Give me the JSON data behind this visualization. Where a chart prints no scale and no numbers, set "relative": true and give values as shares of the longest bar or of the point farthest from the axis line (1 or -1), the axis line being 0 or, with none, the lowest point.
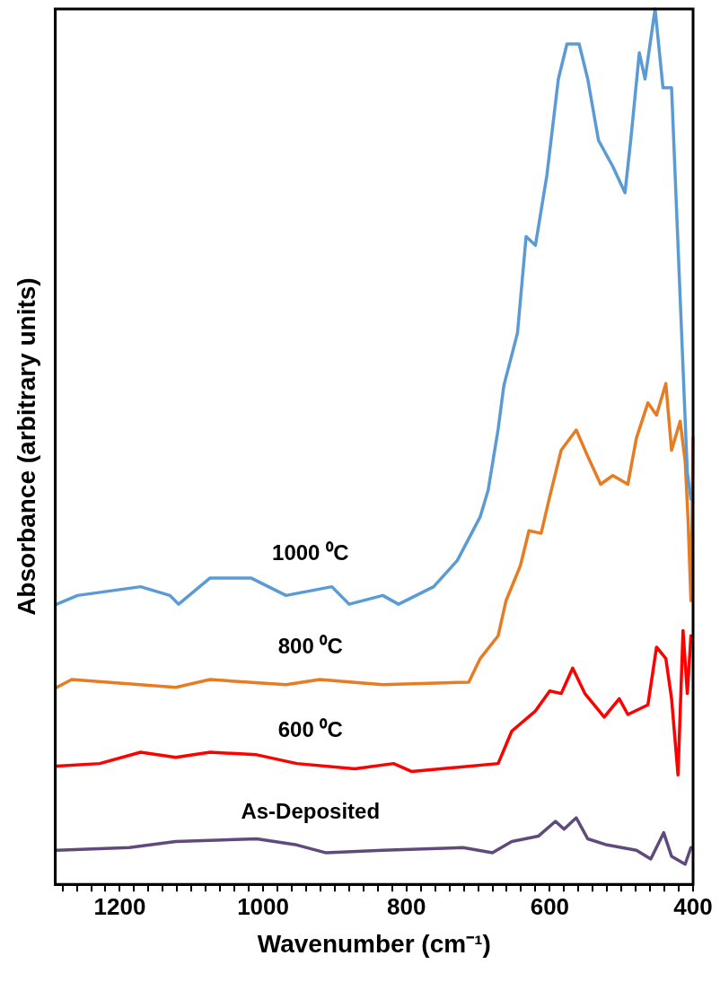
{
  "chart_data": {
    "type": "line",
    "relative": true,
    "xlabel": "Wavenumber (cm⁻¹)",
    "ylabel": "Absorbance (arbitrary units)",
    "xlim": [
      1290,
      400
    ],
    "xticks": [
      {
        "value": 1280,
        "label": null
      },
      {
        "value": 1260,
        "label": null
      },
      {
        "value": 1240,
        "label": null
      },
      {
        "value": 1220,
        "label": null
      },
      1200,
      {
        "value": 1180,
        "label": null
      },
      {
        "value": 1160,
        "label": null
      },
      {
        "value": 1140,
        "label": null
      },
      {
        "value": 1120,
        "label": null
      },
      {
        "value": 1100,
        "label": null
      },
      {
        "value": 1080,
        "label": null
      },
      {
        "value": 1060,
        "label": null
      },
      {
        "value": 1040,
        "label": null
      },
      {
        "value": 1020,
        "label": null
      },
      1000,
      {
        "value": 980,
        "label": null
      },
      {
        "value": 960,
        "label": null
      },
      {
        "value": 940,
        "label": null
      },
      {
        "value": 920,
        "label": null
      },
      {
        "value": 900,
        "label": null
      },
      {
        "value": 880,
        "label": null
      },
      {
        "value": 860,
        "label": null
      },
      {
        "value": 840,
        "label": null
      },
      {
        "value": 820,
        "label": null
      },
      800,
      {
        "value": 780,
        "label": null
      },
      {
        "value": 760,
        "label": null
      },
      {
        "value": 740,
        "label": null
      },
      {
        "value": 720,
        "label": null
      },
      {
        "value": 700,
        "label": null
      },
      {
        "value": 680,
        "label": null
      },
      {
        "value": 660,
        "label": null
      },
      {
        "value": 640,
        "label": null
      },
      {
        "value": 620,
        "label": null
      },
      600,
      {
        "value": 580,
        "label": null
      },
      {
        "value": 560,
        "label": null
      },
      {
        "value": 540,
        "label": null
      },
      {
        "value": 520,
        "label": null
      },
      {
        "value": 500,
        "label": null
      },
      {
        "value": 480,
        "label": null
      },
      {
        "value": 460,
        "label": null
      },
      {
        "value": 440,
        "label": null
      },
      {
        "value": 420,
        "label": null
      },
      400
    ],
    "grid": false,
    "legend": false,
    "marker": "none",
    "line_style": "solid",
    "series": [
      {
        "name": "1000 ⁰C",
        "color": "#5b9bd5",
        "x": [
          1288,
          1259,
          1171,
          1130,
          1118,
          1074,
          1017,
          968,
          904,
          880,
          833,
          811,
          762,
          729,
          697,
          686,
          672,
          664,
          645,
          633,
          620,
          604,
          588,
          576,
          559,
          547,
          532,
          512,
          495,
          487,
          475,
          467,
          453,
          442,
          430,
          422,
          414,
          408,
          403
        ],
        "values": [
          0.32,
          0.33,
          0.34,
          0.33,
          0.32,
          0.35,
          0.35,
          0.33,
          0.34,
          0.32,
          0.33,
          0.32,
          0.34,
          0.37,
          0.42,
          0.45,
          0.52,
          0.57,
          0.63,
          0.74,
          0.73,
          0.81,
          0.92,
          0.96,
          0.96,
          0.92,
          0.85,
          0.82,
          0.79,
          0.85,
          0.95,
          0.92,
          1.0,
          0.91,
          0.91,
          0.75,
          0.59,
          0.47,
          0.44
        ]
      },
      {
        "name": "800 ⁰C",
        "color": "#e67c24",
        "x": [
          1288,
          1267,
          1122,
          1074,
          968,
          921,
          833,
          713,
          697,
          672,
          661,
          641,
          629,
          612,
          600,
          584,
          563,
          547,
          529,
          512,
          491,
          479,
          463,
          451,
          438,
          430,
          418,
          411,
          407,
          403,
          400
        ],
        "values": [
          0.225,
          0.234,
          0.225,
          0.234,
          0.228,
          0.234,
          0.228,
          0.231,
          0.258,
          0.284,
          0.324,
          0.364,
          0.404,
          0.401,
          0.443,
          0.496,
          0.519,
          0.489,
          0.457,
          0.467,
          0.457,
          0.51,
          0.55,
          0.536,
          0.572,
          0.496,
          0.529,
          0.483,
          0.417,
          0.324,
          0.51
        ]
      },
      {
        "name": "600 ⁰C",
        "color": "#ff0000",
        "x": [
          1288,
          1228,
          1171,
          1122,
          1074,
          1009,
          953,
          872,
          818,
          793,
          672,
          653,
          620,
          600,
          584,
          568,
          551,
          524,
          503,
          491,
          463,
          451,
          438,
          430,
          421,
          414,
          408,
          403
        ],
        "values": [
          0.135,
          0.138,
          0.151,
          0.145,
          0.151,
          0.148,
          0.138,
          0.132,
          0.138,
          0.129,
          0.138,
          0.175,
          0.198,
          0.221,
          0.218,
          0.247,
          0.218,
          0.191,
          0.212,
          0.194,
          0.205,
          0.271,
          0.258,
          0.212,
          0.125,
          0.29,
          0.218,
          0.284
        ]
      },
      {
        "name": "As-Deposited",
        "color": "#604a7b",
        "x": [
          1288,
          1187,
          1122,
          1009,
          953,
          912,
          833,
          721,
          680,
          653,
          616,
          592,
          580,
          563,
          547,
          520,
          479,
          459,
          441,
          430,
          411,
          403
        ],
        "values": [
          0.039,
          0.042,
          0.049,
          0.052,
          0.045,
          0.036,
          0.039,
          0.042,
          0.036,
          0.049,
          0.055,
          0.072,
          0.063,
          0.076,
          0.052,
          0.045,
          0.039,
          0.029,
          0.059,
          0.032,
          0.023,
          0.042
        ]
      }
    ]
  }
}
